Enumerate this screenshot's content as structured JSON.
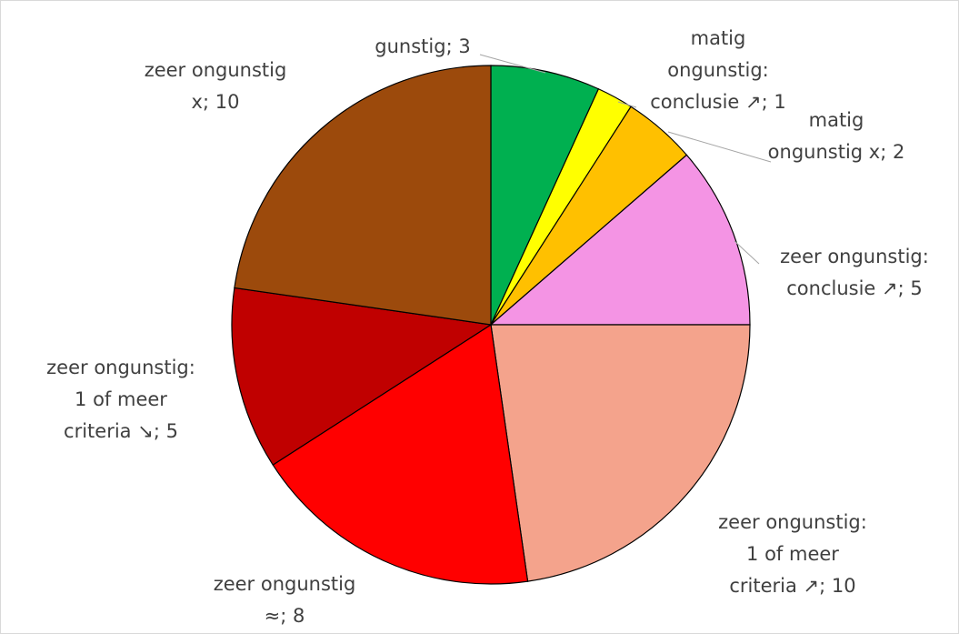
{
  "chart_data": {
    "type": "pie",
    "values": [
      3,
      1,
      2,
      5,
      10,
      8,
      5,
      10
    ],
    "colors": [
      "#00b050",
      "#ffff00",
      "#ffc000",
      "#f494e4",
      "#f4a38c",
      "#ff0000",
      "#c00000",
      "#9c4a0c"
    ],
    "labels": [
      [
        "gunstig; 3"
      ],
      [
        "matig",
        "ongunstig:",
        "conclusie ↗; 1"
      ],
      [
        "matig",
        "ongunstig x; 2"
      ],
      [
        "zeer ongunstig:",
        "conclusie ↗; 5"
      ],
      [
        "zeer ongunstig:",
        "1 of meer",
        "criteria ↗; 10"
      ],
      [
        "zeer ongunstig",
        "≈; 8"
      ],
      [
        "zeer ongunstig:",
        "1 of meer",
        "criteria ↘; 5"
      ],
      [
        "zeer ongunstig",
        "x; 10"
      ]
    ]
  }
}
